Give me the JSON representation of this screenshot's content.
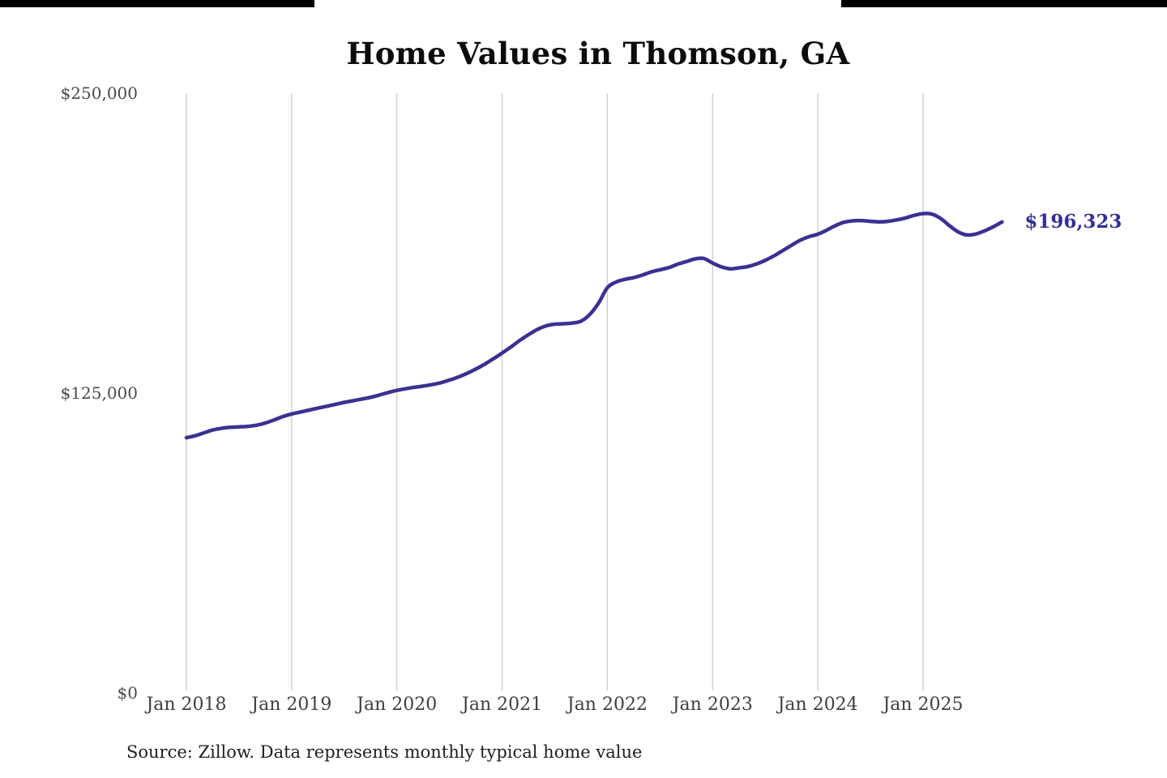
{
  "title_text": "Home Values in Thomson, GA",
  "source_note": "Source: Zillow. Data represents monthly typical home value",
  "colors": {
    "line": "#3a3191",
    "annotation": "#343093",
    "gridline": "#cbcbcb",
    "axis_text": "#4a4a4a",
    "title_text_color": "#0c0c0c",
    "background": "#ffffff"
  },
  "chart_data": {
    "type": "line",
    "title": "Home Values in Thomson, GA",
    "xlabel": "",
    "ylabel": "",
    "ylim": [
      0,
      250000
    ],
    "grid": "vertical-only",
    "legend": "none",
    "frequency": "monthly",
    "x_start": "Jan 2018",
    "x_end": "Oct 2025",
    "x_tick_labels": [
      "Jan 2018",
      "Jan 2019",
      "Jan 2020",
      "Jan 2021",
      "Jan 2022",
      "Jan 2023",
      "Jan 2024",
      "Jan 2025"
    ],
    "y_ticks": [
      {
        "label": "$250,000",
        "value": 250000
      },
      {
        "label": "$125,000",
        "value": 125000
      },
      {
        "label": "$0",
        "value": 0
      }
    ],
    "end_value_label": "$196,323",
    "end_value": 196323,
    "series": [
      {
        "name": "Monthly typical home value",
        "values": [
          106400,
          107200,
          108400,
          109600,
          110300,
          110700,
          110900,
          111100,
          111600,
          112500,
          113800,
          115200,
          116300,
          117100,
          117900,
          118700,
          119500,
          120300,
          121100,
          121800,
          122500,
          123200,
          124200,
          125200,
          126100,
          126800,
          127400,
          127900,
          128500,
          129300,
          130400,
          131700,
          133200,
          135000,
          137000,
          139300,
          141700,
          144200,
          146900,
          149300,
          151500,
          153000,
          153700,
          153900,
          154200,
          155000,
          157800,
          162500,
          168900,
          171300,
          172400,
          173100,
          174200,
          175500,
          176400,
          177300,
          178700,
          179800,
          180900,
          181100,
          179200,
          177600,
          176800,
          177200,
          177700,
          178800,
          180300,
          182200,
          184400,
          186600,
          188700,
          190200,
          191200,
          192900,
          194800,
          196200,
          196800,
          196900,
          196600,
          196400,
          196600,
          197200,
          198000,
          199100,
          199800,
          199600,
          197800,
          194800,
          192200,
          190900,
          191300,
          192600,
          194300,
          196323
        ]
      }
    ]
  }
}
